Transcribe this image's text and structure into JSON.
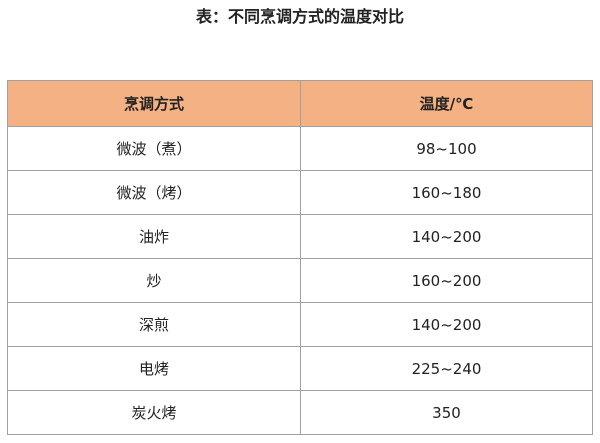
{
  "title": "表：不同烹调方式的温度对比",
  "colors": {
    "header_bg": "#f4b183",
    "border": "#a0a0a0"
  },
  "table": {
    "headers": [
      "烹调方式",
      "温度/℃"
    ],
    "rows": [
      [
        "微波（煮）",
        "98~100"
      ],
      [
        "微波（烤）",
        "160~180"
      ],
      [
        "油炸",
        "140~200"
      ],
      [
        "炒",
        "160~200"
      ],
      [
        "深煎",
        "140~200"
      ],
      [
        "电烤",
        "225~240"
      ],
      [
        "炭火烤",
        "350"
      ]
    ]
  }
}
